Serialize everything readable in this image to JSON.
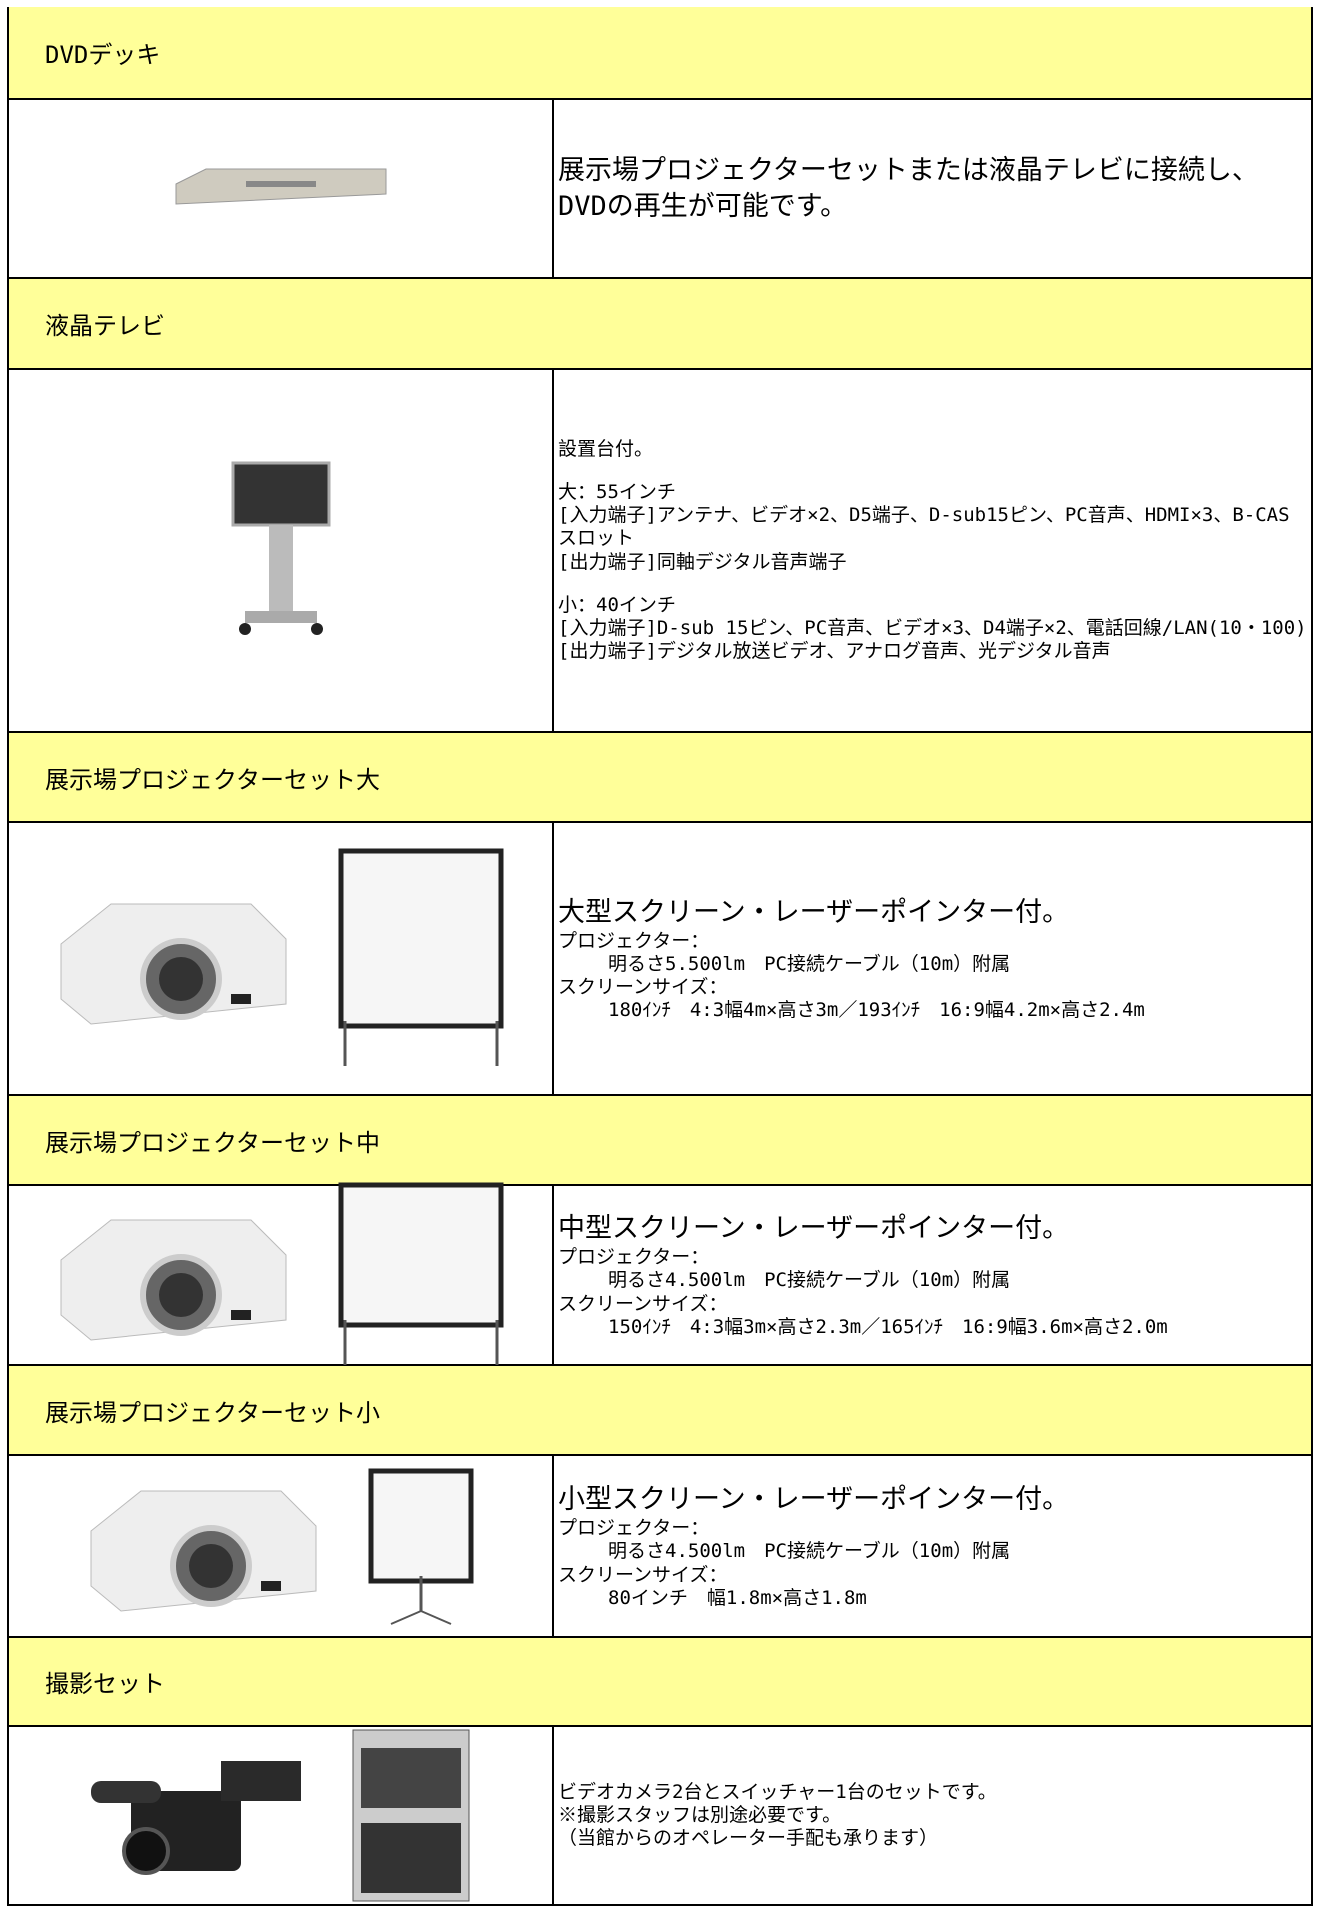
{
  "sections": [
    {
      "title": "DVDデッキ",
      "lead": "展示場プロジェクターセットまたは液晶テレビに接続し、DVDの再生が可能です。"
    },
    {
      "title": "液晶テレビ",
      "paragraphs": [
        [
          "設置台付。"
        ],
        [
          "大：55インチ",
          "[入力端子]アンテナ、ビデオ×2、D5端子、D-sub15ピン、PC音声、HDMI×3、B-CASスロット",
          "[出力端子]同軸デジタル音声端子"
        ],
        [
          "小：40インチ",
          "[入力端子]D-sub 15ピン、PC音声、ビデオ×3、D4端子×2、電話回線/LAN(10・100)",
          "[出力端子]デジタル放送ビデオ、アナログ音声、光デジタル音声"
        ]
      ]
    },
    {
      "title": "展示場プロジェクターセット大",
      "lead": "大型スクリーン・レーザーポインター付。",
      "specs": [
        {
          "label": "プロジェクター：",
          "detail": "明るさ5.500lm　PC接続ケーブル（10m）附属"
        },
        {
          "label": "スクリーンサイズ：",
          "detail": "180ｲﾝﾁ　4:3幅4m×高さ3m／193ｲﾝﾁ　16:9幅4.2m×高さ2.4m"
        }
      ]
    },
    {
      "title": "展示場プロジェクターセット中",
      "lead": "中型スクリーン・レーザーポインター付。",
      "specs": [
        {
          "label": "プロジェクター：",
          "detail": "明るさ4.500lm　PC接続ケーブル（10m）附属"
        },
        {
          "label": "スクリーンサイズ：",
          "detail": "150ｲﾝﾁ　4:3幅3m×高さ2.3m／165ｲﾝﾁ　16:9幅3.6m×高さ2.0m"
        }
      ]
    },
    {
      "title": "展示場プロジェクターセット小",
      "lead": "小型スクリーン・レーザーポインター付。",
      "specs": [
        {
          "label": "プロジェクター：",
          "detail": "明るさ4.500lm　PC接続ケーブル（10m）附属"
        },
        {
          "label": "スクリーンサイズ：",
          "detail": "80インチ　幅1.8m×高さ1.8m"
        }
      ]
    },
    {
      "title": "撮影セット",
      "paragraphs": [
        [
          "ビデオカメラ2台とスイッチャー1台のセットです。",
          "※撮影スタッフは別途必要です。",
          "（当館からのオペレーター手配も承ります）"
        ]
      ]
    }
  ]
}
